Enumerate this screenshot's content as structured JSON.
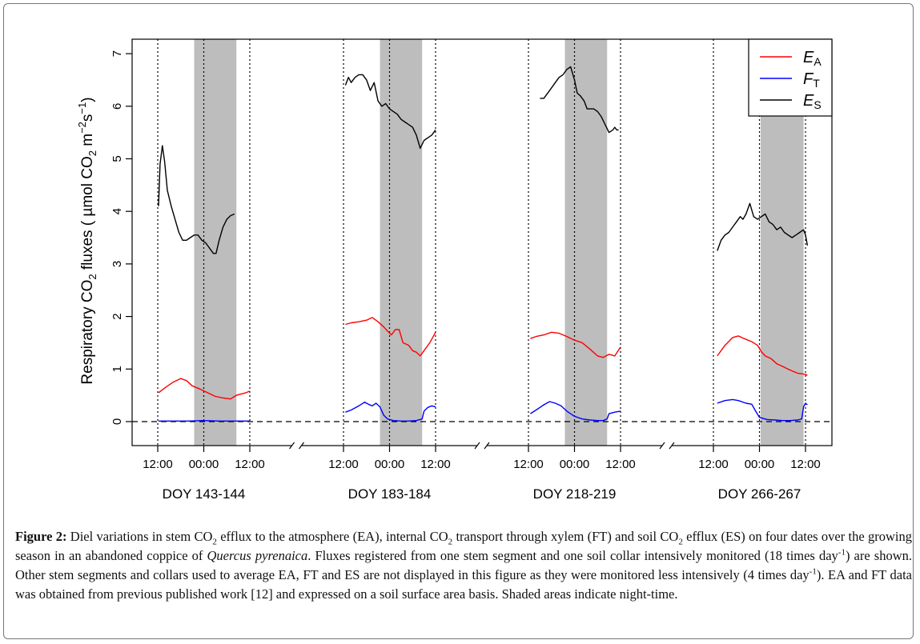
{
  "chart_data": {
    "type": "line",
    "ylabel_parts": [
      "Respiratory CO",
      "2",
      " fluxes ( µmol CO",
      "2",
      " m",
      "−2",
      "s",
      "−1",
      ")"
    ],
    "ylim": [
      0,
      7
    ],
    "yticks": [
      0,
      1,
      2,
      3,
      4,
      5,
      6,
      7
    ],
    "legend_position": "top-right",
    "legend": [
      {
        "series": "EA",
        "main": "E",
        "sub": "A",
        "color": "#ff0000"
      },
      {
        "series": "FT",
        "main": "F",
        "sub": "T",
        "color": "#0000ff"
      },
      {
        "series": "ES",
        "main": "E",
        "sub": "S",
        "color": "#000000"
      }
    ],
    "reference_line": {
      "y": 0,
      "style": "dashed"
    },
    "tick_labels": [
      "12:00",
      "00:00",
      "12:00"
    ],
    "panels": [
      {
        "label": "DOY 143-144",
        "night": [
          21.5,
          32.5
        ],
        "ES": [
          [
            12.2,
            4.1
          ],
          [
            12.6,
            4.9
          ],
          [
            13.2,
            5.25
          ],
          [
            13.8,
            4.95
          ],
          [
            14.5,
            4.4
          ],
          [
            15.5,
            4.1
          ],
          [
            16.5,
            3.85
          ],
          [
            17.5,
            3.6
          ],
          [
            18.5,
            3.45
          ],
          [
            19.5,
            3.45
          ],
          [
            20.5,
            3.5
          ],
          [
            21.5,
            3.55
          ],
          [
            22.5,
            3.55
          ],
          [
            23.5,
            3.45
          ],
          [
            24.5,
            3.4
          ],
          [
            25.5,
            3.3
          ],
          [
            26.5,
            3.2
          ],
          [
            27.2,
            3.2
          ],
          [
            28,
            3.45
          ],
          [
            29,
            3.7
          ],
          [
            30,
            3.85
          ],
          [
            31,
            3.92
          ],
          [
            32,
            3.95
          ]
        ],
        "EA": [
          [
            12.2,
            0.55
          ],
          [
            14,
            0.65
          ],
          [
            16,
            0.75
          ],
          [
            18,
            0.82
          ],
          [
            19.5,
            0.78
          ],
          [
            21,
            0.68
          ],
          [
            23,
            0.62
          ],
          [
            25,
            0.55
          ],
          [
            27,
            0.48
          ],
          [
            29,
            0.45
          ],
          [
            31,
            0.43
          ],
          [
            32.5,
            0.5
          ],
          [
            35,
            0.55
          ],
          [
            36,
            0.58
          ]
        ],
        "FT": [
          [
            12.2,
            0.01
          ],
          [
            20,
            0.01
          ],
          [
            24,
            0.02
          ],
          [
            28,
            0.01
          ],
          [
            32,
            0.01
          ],
          [
            36,
            0.01
          ]
        ]
      },
      {
        "label": "DOY 183-184",
        "night": [
          21.5,
          32.5
        ],
        "ES": [
          [
            12.5,
            6.4
          ],
          [
            13.3,
            6.55
          ],
          [
            14,
            6.45
          ],
          [
            15,
            6.55
          ],
          [
            16,
            6.6
          ],
          [
            17,
            6.6
          ],
          [
            18,
            6.5
          ],
          [
            19,
            6.3
          ],
          [
            20,
            6.45
          ],
          [
            21,
            6.1
          ],
          [
            22,
            6.0
          ],
          [
            23,
            6.05
          ],
          [
            24,
            5.95
          ],
          [
            25,
            5.9
          ],
          [
            26,
            5.85
          ],
          [
            27,
            5.75
          ],
          [
            28,
            5.7
          ],
          [
            29,
            5.65
          ],
          [
            30,
            5.6
          ],
          [
            31,
            5.45
          ],
          [
            32,
            5.2
          ],
          [
            33,
            5.35
          ],
          [
            34,
            5.4
          ],
          [
            35,
            5.45
          ],
          [
            36,
            5.55
          ]
        ],
        "EA": [
          [
            12.5,
            1.85
          ],
          [
            14,
            1.88
          ],
          [
            16,
            1.9
          ],
          [
            18,
            1.93
          ],
          [
            19.5,
            1.98
          ],
          [
            21,
            1.9
          ],
          [
            22.5,
            1.8
          ],
          [
            23.5,
            1.72
          ],
          [
            24.5,
            1.65
          ],
          [
            25.5,
            1.75
          ],
          [
            26.5,
            1.75
          ],
          [
            27.5,
            1.5
          ],
          [
            29,
            1.45
          ],
          [
            30,
            1.35
          ],
          [
            31,
            1.32
          ],
          [
            32,
            1.25
          ],
          [
            33,
            1.35
          ],
          [
            34.5,
            1.5
          ],
          [
            36,
            1.7
          ]
        ],
        "FT": [
          [
            12.5,
            0.18
          ],
          [
            14,
            0.22
          ],
          [
            16,
            0.3
          ],
          [
            17.5,
            0.37
          ],
          [
            18.5,
            0.33
          ],
          [
            19.5,
            0.3
          ],
          [
            20.5,
            0.35
          ],
          [
            21.5,
            0.28
          ],
          [
            22.5,
            0.12
          ],
          [
            23.5,
            0.05
          ],
          [
            25,
            0.02
          ],
          [
            27,
            0.01
          ],
          [
            29,
            0.01
          ],
          [
            31,
            0.02
          ],
          [
            32.5,
            0.05
          ],
          [
            33,
            0.2
          ],
          [
            34,
            0.27
          ],
          [
            35,
            0.3
          ],
          [
            36,
            0.28
          ]
        ]
      },
      {
        "label": "DOY 218-219",
        "night": [
          21.5,
          32.5
        ],
        "ES": [
          [
            15,
            6.15
          ],
          [
            16,
            6.15
          ],
          [
            17,
            6.25
          ],
          [
            18,
            6.35
          ],
          [
            19,
            6.45
          ],
          [
            20,
            6.55
          ],
          [
            21,
            6.6
          ],
          [
            22,
            6.7
          ],
          [
            23,
            6.75
          ],
          [
            24,
            6.5
          ],
          [
            24.7,
            6.25
          ],
          [
            25.5,
            6.2
          ],
          [
            26.5,
            6.1
          ],
          [
            27.3,
            5.95
          ],
          [
            28,
            5.95
          ],
          [
            29,
            5.95
          ],
          [
            30,
            5.9
          ],
          [
            31,
            5.8
          ],
          [
            32,
            5.65
          ],
          [
            33,
            5.5
          ],
          [
            34,
            5.55
          ],
          [
            34.5,
            5.6
          ],
          [
            35,
            5.55
          ],
          [
            35.5,
            5.55
          ]
        ],
        "EA": [
          [
            12.5,
            1.58
          ],
          [
            14,
            1.62
          ],
          [
            16,
            1.65
          ],
          [
            18,
            1.7
          ],
          [
            20,
            1.68
          ],
          [
            22,
            1.62
          ],
          [
            24,
            1.55
          ],
          [
            26,
            1.5
          ],
          [
            28,
            1.38
          ],
          [
            30,
            1.25
          ],
          [
            31.5,
            1.22
          ],
          [
            33,
            1.28
          ],
          [
            34.5,
            1.25
          ],
          [
            36,
            1.42
          ]
        ],
        "FT": [
          [
            12.5,
            0.15
          ],
          [
            14,
            0.22
          ],
          [
            16,
            0.32
          ],
          [
            17.5,
            0.38
          ],
          [
            19,
            0.35
          ],
          [
            20.5,
            0.3
          ],
          [
            22,
            0.2
          ],
          [
            24,
            0.1
          ],
          [
            26,
            0.05
          ],
          [
            28,
            0.03
          ],
          [
            30,
            0.02
          ],
          [
            31.5,
            0.02
          ],
          [
            32.5,
            0.05
          ],
          [
            33,
            0.15
          ],
          [
            34.5,
            0.18
          ],
          [
            36,
            0.2
          ]
        ]
      },
      {
        "label": "DOY 266-267",
        "night": [
          24.3,
          35.5
        ],
        "ES": [
          [
            13,
            3.25
          ],
          [
            14,
            3.45
          ],
          [
            15,
            3.55
          ],
          [
            16,
            3.6
          ],
          [
            17,
            3.7
          ],
          [
            18,
            3.8
          ],
          [
            19,
            3.9
          ],
          [
            19.7,
            3.85
          ],
          [
            20.5,
            3.95
          ],
          [
            21.5,
            4.15
          ],
          [
            22.5,
            3.9
          ],
          [
            23.5,
            3.85
          ],
          [
            24.5,
            3.9
          ],
          [
            25.5,
            3.95
          ],
          [
            26.5,
            3.8
          ],
          [
            27.5,
            3.75
          ],
          [
            28.5,
            3.65
          ],
          [
            29.5,
            3.7
          ],
          [
            30.5,
            3.6
          ],
          [
            31.5,
            3.55
          ],
          [
            32.5,
            3.5
          ],
          [
            33.5,
            3.55
          ],
          [
            34.5,
            3.6
          ],
          [
            35.5,
            3.65
          ],
          [
            36,
            3.55
          ],
          [
            36.5,
            3.35
          ]
        ],
        "EA": [
          [
            13,
            1.25
          ],
          [
            15,
            1.45
          ],
          [
            17,
            1.6
          ],
          [
            18.5,
            1.63
          ],
          [
            20,
            1.58
          ],
          [
            22,
            1.52
          ],
          [
            23.5,
            1.45
          ],
          [
            24.5,
            1.33
          ],
          [
            25.5,
            1.25
          ],
          [
            27,
            1.2
          ],
          [
            28.5,
            1.1
          ],
          [
            30,
            1.05
          ],
          [
            32,
            0.98
          ],
          [
            34,
            0.92
          ],
          [
            36,
            0.9
          ],
          [
            36.5,
            0.88
          ]
        ],
        "FT": [
          [
            13,
            0.35
          ],
          [
            15,
            0.4
          ],
          [
            17,
            0.42
          ],
          [
            18.5,
            0.4
          ],
          [
            20.5,
            0.35
          ],
          [
            22,
            0.33
          ],
          [
            23,
            0.2
          ],
          [
            24,
            0.08
          ],
          [
            26,
            0.04
          ],
          [
            28,
            0.03
          ],
          [
            30,
            0.02
          ],
          [
            32,
            0.02
          ],
          [
            34,
            0.03
          ],
          [
            35,
            0.05
          ],
          [
            35.5,
            0.28
          ],
          [
            36,
            0.35
          ],
          [
            36.5,
            0.32
          ]
        ]
      }
    ]
  },
  "caption": {
    "label": "Figure 2:",
    "segments": [
      {
        "t": " Diel variations in stem CO"
      },
      {
        "t": "2",
        "f": "sub"
      },
      {
        "t": " efflux to the atmosphere (EA), internal CO"
      },
      {
        "t": "2",
        "f": "sub"
      },
      {
        "t": " transport through xylem (FT) and soil CO"
      },
      {
        "t": "2",
        "f": "sub"
      },
      {
        "t": " efflux (ES) on four dates over the growing season in an abandoned coppice of "
      },
      {
        "t": "Quercus pyrenaica",
        "f": "i"
      },
      {
        "t": ". Fluxes registered from one stem segment and one soil collar intensively monitored (18 times day"
      },
      {
        "t": "-1",
        "f": "sup"
      },
      {
        "t": ") are shown. Other stem segments and collars used to average EA, FT and ES are not displayed in this figure as they were monitored less intensively (4 times day"
      },
      {
        "t": "-1",
        "f": "sup"
      },
      {
        "t": "). EA and FT data was obtained from previous published work [12] and expressed on a soil surface area basis. Shaded areas indicate night-time."
      }
    ]
  }
}
